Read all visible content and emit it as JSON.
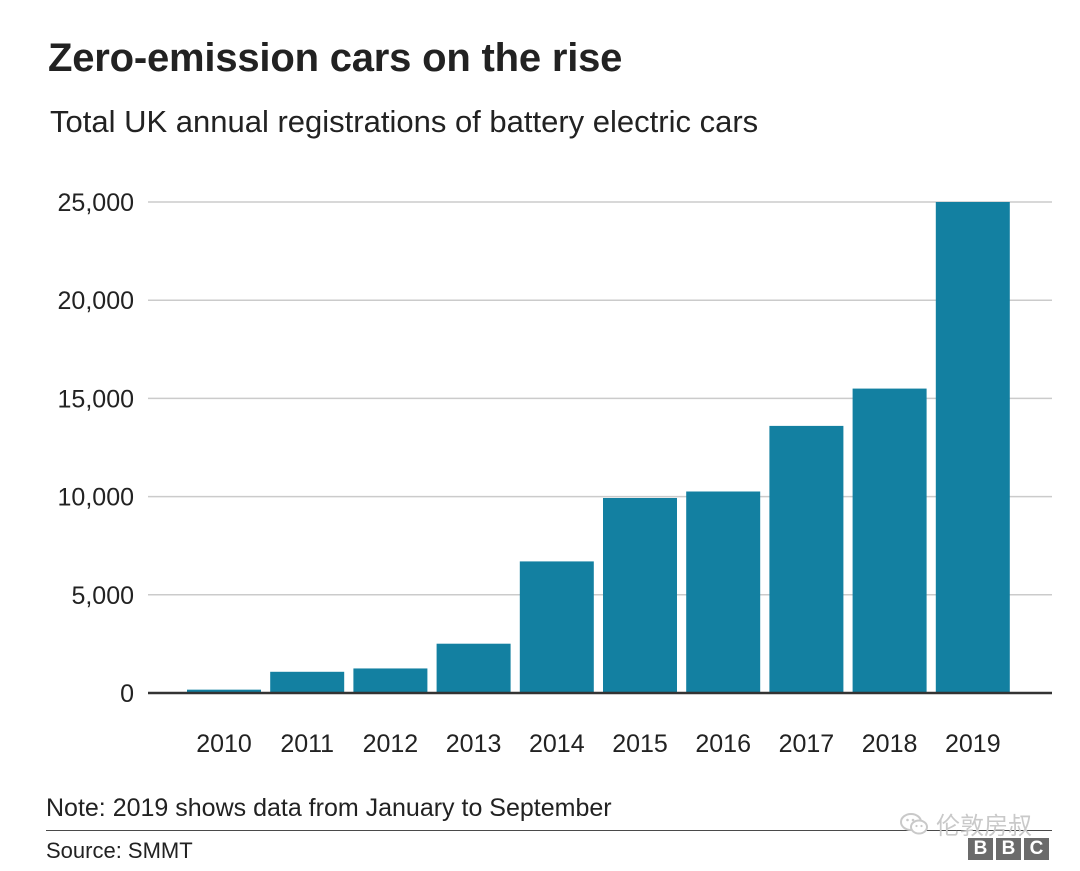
{
  "header": {
    "title": "Zero-emission cars on the rise",
    "subtitle": "Total UK annual registrations of battery electric cars"
  },
  "footer": {
    "note": "Note: 2019 shows data from January to September",
    "source": "Source: SMMT",
    "watermark": "伦敦房叔",
    "logo_letters": [
      "B",
      "B",
      "C"
    ]
  },
  "colors": {
    "bar": "#1380A1",
    "grid": "#cbcbcb",
    "axis": "#333333",
    "text": "#222222"
  },
  "icons": {
    "watermark_icon": "wechat-icon"
  },
  "chart_data": {
    "type": "bar",
    "title": "Zero-emission cars on the rise",
    "subtitle": "Total UK annual registrations of battery electric cars",
    "xlabel": "",
    "ylabel": "",
    "categories": [
      "2010",
      "2011",
      "2012",
      "2013",
      "2014",
      "2015",
      "2016",
      "2017",
      "2018",
      "2019"
    ],
    "values": [
      170,
      1080,
      1250,
      2510,
      6700,
      9930,
      10260,
      13600,
      15500,
      25000
    ],
    "ylim": [
      0,
      25000
    ],
    "yticks": [
      0,
      5000,
      10000,
      15000,
      20000,
      25000
    ],
    "ytick_labels": [
      "0",
      "5,000",
      "10,000",
      "15,000",
      "20,000",
      "25,000"
    ],
    "grid": true,
    "legend": "none"
  }
}
